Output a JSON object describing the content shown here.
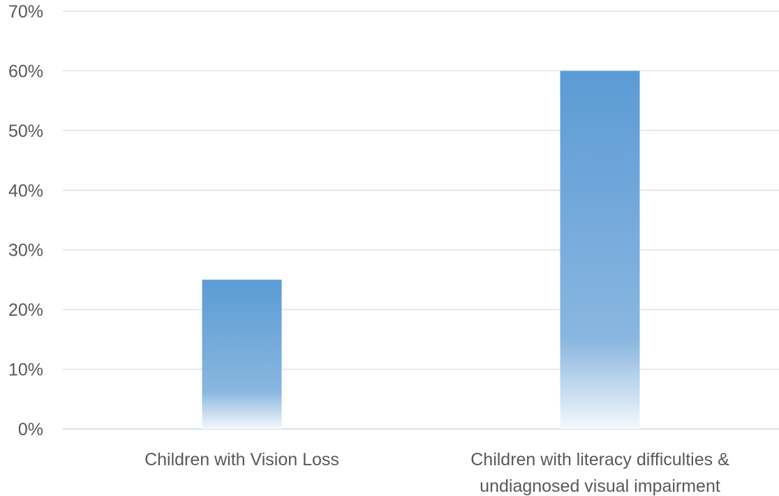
{
  "chart_data": {
    "type": "bar",
    "title": "",
    "xlabel": "",
    "ylabel": "",
    "ylim": [
      0,
      70
    ],
    "y_tick_step": 10,
    "y_tick_format": "percent",
    "grid": true,
    "legend": "none",
    "colors": {
      "bar_top": "#5b9bd5",
      "bar_bottom": "#ffffff",
      "grid": "#d6e2ee",
      "text": "#595959"
    },
    "categories": [
      [
        "Children with Vision Loss"
      ],
      [
        "Children with literacy difficulties &",
        "undiagnosed visual impairment"
      ]
    ],
    "values": [
      25,
      60
    ]
  }
}
